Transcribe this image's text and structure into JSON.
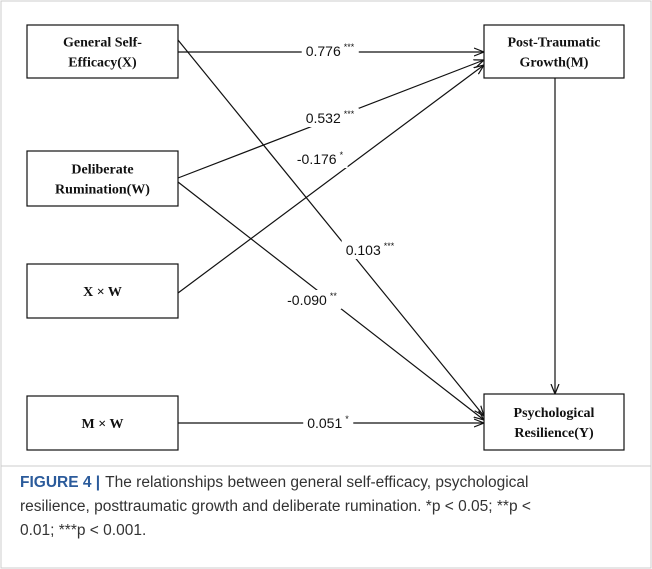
{
  "nodes": [
    {
      "id": "X",
      "lines": [
        "General Self-",
        "Efficacy(X)"
      ]
    },
    {
      "id": "W",
      "lines": [
        "Deliberate",
        "Rumination(W)"
      ]
    },
    {
      "id": "XW",
      "lines": [
        "X × W"
      ]
    },
    {
      "id": "MW",
      "lines": [
        "M × W"
      ]
    },
    {
      "id": "M",
      "lines": [
        "Post-Traumatic",
        "Growth(M)"
      ]
    },
    {
      "id": "Y",
      "lines": [
        "Psychological",
        "Resilience(Y)"
      ]
    }
  ],
  "edges": [
    {
      "from": "X",
      "to": "M",
      "coef": "0.776",
      "sig": "***"
    },
    {
      "from": "W",
      "to": "M",
      "coef": "0.532",
      "sig": "***"
    },
    {
      "from": "XW",
      "to": "M",
      "coef": "-0.176",
      "sig": "*"
    },
    {
      "from": "X",
      "to": "Y",
      "coef": "0.103",
      "sig": "***"
    },
    {
      "from": "W",
      "to": "Y",
      "coef": "-0.090",
      "sig": "**"
    },
    {
      "from": "M",
      "to": "Y"
    },
    {
      "from": "MW",
      "to": "Y",
      "coef": "0.051",
      "sig": "*"
    }
  ],
  "caption": {
    "label": "FIGURE 4 |",
    "lines": [
      "The relationships between general self-efficacy, psychological",
      "resilience, posttraumatic growth and deliberate rumination. *p < 0.05; **p <",
      "0.01; ***p < 0.001."
    ]
  }
}
